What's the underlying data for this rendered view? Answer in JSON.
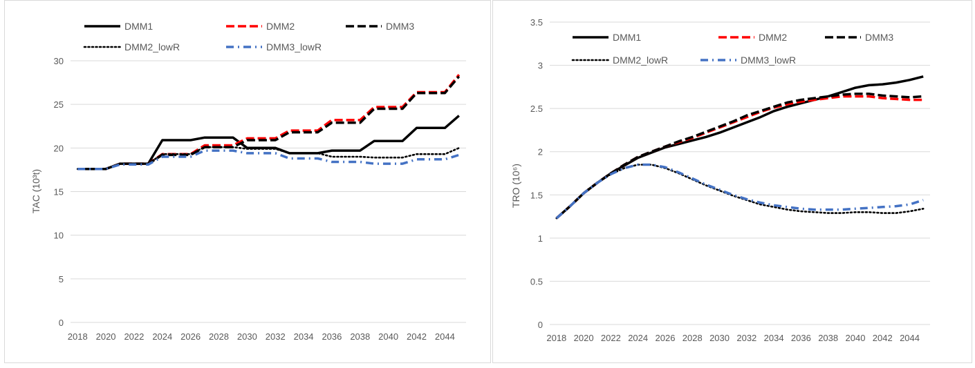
{
  "chart_data": [
    {
      "type": "line",
      "xlabel": "",
      "ylabel": "TAC (10³t)",
      "ylim": [
        0,
        30
      ],
      "y_ticks": [
        "0",
        "5",
        "10",
        "15",
        "20",
        "25",
        "30"
      ],
      "x_ticks": [
        "2018",
        "2020",
        "2022",
        "2024",
        "2026",
        "2028",
        "2030",
        "2032",
        "2034",
        "2036",
        "2038",
        "2040",
        "2042",
        "2044"
      ],
      "legend_placement": "top",
      "x": [
        2018,
        2019,
        2020,
        2021,
        2022,
        2023,
        2024,
        2025,
        2026,
        2027,
        2028,
        2029,
        2030,
        2031,
        2032,
        2033,
        2034,
        2035,
        2036,
        2037,
        2038,
        2039,
        2040,
        2041,
        2042,
        2043,
        2044,
        2045
      ],
      "series": [
        {
          "name": "DMM1",
          "style": "solid",
          "color": "#000000",
          "values": [
            17.6,
            17.6,
            17.6,
            18.2,
            18.2,
            18.2,
            20.9,
            20.9,
            20.9,
            21.2,
            21.2,
            21.2,
            20.0,
            20.0,
            20.0,
            19.4,
            19.4,
            19.4,
            19.7,
            19.7,
            19.7,
            20.8,
            20.8,
            20.8,
            22.3,
            22.3,
            22.3,
            23.7
          ]
        },
        {
          "name": "DMM2",
          "style": "dash",
          "color": "#ff0000",
          "values": [
            17.6,
            17.6,
            17.6,
            18.2,
            18.2,
            18.2,
            19.3,
            19.3,
            19.3,
            20.3,
            20.3,
            20.3,
            21.1,
            21.1,
            21.1,
            22.0,
            22.0,
            22.0,
            23.2,
            23.2,
            23.2,
            24.7,
            24.7,
            24.7,
            26.4,
            26.4,
            26.4,
            28.4
          ]
        },
        {
          "name": "DMM3",
          "style": "dash",
          "color": "#000000",
          "values": [
            17.6,
            17.6,
            17.6,
            18.2,
            18.2,
            18.2,
            19.2,
            19.2,
            19.2,
            20.1,
            20.1,
            20.1,
            20.9,
            20.9,
            20.9,
            21.8,
            21.8,
            21.8,
            22.9,
            22.9,
            22.9,
            24.5,
            24.5,
            24.5,
            26.3,
            26.3,
            26.3,
            28.2
          ]
        },
        {
          "name": "DMM2_lowR",
          "style": "dot",
          "color": "#000000",
          "values": [
            17.6,
            17.6,
            17.6,
            18.2,
            18.2,
            18.2,
            19.3,
            19.3,
            19.3,
            20.1,
            20.1,
            20.1,
            19.9,
            19.9,
            19.9,
            19.4,
            19.4,
            19.4,
            19.0,
            19.0,
            19.0,
            18.9,
            18.9,
            18.9,
            19.3,
            19.3,
            19.3,
            20.0
          ]
        },
        {
          "name": "DMM3_lowR",
          "style": "dashdot",
          "color": "#4472c4",
          "values": [
            17.6,
            17.6,
            17.6,
            18.1,
            18.1,
            18.1,
            19.0,
            19.0,
            19.0,
            19.7,
            19.7,
            19.7,
            19.4,
            19.4,
            19.4,
            18.8,
            18.8,
            18.8,
            18.4,
            18.4,
            18.4,
            18.2,
            18.2,
            18.2,
            18.7,
            18.7,
            18.7,
            19.2
          ]
        }
      ]
    },
    {
      "type": "line",
      "xlabel": "",
      "ylabel": "TRO (10⁶)",
      "ylim": [
        0,
        3.5
      ],
      "y_ticks": [
        "0",
        "0.5",
        "1",
        "1.5",
        "2",
        "2.5",
        "3",
        "3.5"
      ],
      "x_ticks": [
        "2018",
        "2020",
        "2022",
        "2024",
        "2026",
        "2028",
        "2030",
        "2032",
        "2034",
        "2036",
        "2038",
        "2040",
        "2042",
        "2044"
      ],
      "legend_placement": "top",
      "x": [
        2018,
        2019,
        2020,
        2021,
        2022,
        2023,
        2024,
        2025,
        2026,
        2027,
        2028,
        2029,
        2030,
        2031,
        2032,
        2033,
        2034,
        2035,
        2036,
        2037,
        2038,
        2039,
        2040,
        2041,
        2042,
        2043,
        2044,
        2045
      ],
      "series": [
        {
          "name": "DMM1",
          "style": "solid",
          "color": "#000000",
          "values": [
            1.23,
            1.37,
            1.52,
            1.64,
            1.75,
            1.84,
            1.93,
            1.99,
            2.05,
            2.09,
            2.13,
            2.17,
            2.22,
            2.28,
            2.34,
            2.4,
            2.47,
            2.52,
            2.56,
            2.6,
            2.64,
            2.69,
            2.74,
            2.77,
            2.78,
            2.8,
            2.83,
            2.87
          ]
        },
        {
          "name": "DMM2",
          "style": "dash",
          "color": "#ff0000",
          "values": [
            1.23,
            1.37,
            1.52,
            1.64,
            1.75,
            1.85,
            1.94,
            2.0,
            2.06,
            2.11,
            2.16,
            2.22,
            2.28,
            2.34,
            2.4,
            2.46,
            2.51,
            2.55,
            2.58,
            2.6,
            2.62,
            2.64,
            2.64,
            2.64,
            2.62,
            2.61,
            2.6,
            2.6
          ]
        },
        {
          "name": "DMM3",
          "style": "dash",
          "color": "#000000",
          "values": [
            1.23,
            1.37,
            1.52,
            1.64,
            1.75,
            1.85,
            1.94,
            2.0,
            2.06,
            2.12,
            2.17,
            2.23,
            2.29,
            2.35,
            2.42,
            2.47,
            2.52,
            2.57,
            2.6,
            2.62,
            2.64,
            2.66,
            2.67,
            2.67,
            2.65,
            2.64,
            2.63,
            2.64
          ]
        },
        {
          "name": "DMM2_lowR",
          "style": "dot",
          "color": "#000000",
          "values": [
            1.23,
            1.37,
            1.52,
            1.64,
            1.74,
            1.81,
            1.85,
            1.85,
            1.81,
            1.75,
            1.68,
            1.61,
            1.55,
            1.49,
            1.44,
            1.39,
            1.36,
            1.33,
            1.31,
            1.3,
            1.29,
            1.29,
            1.3,
            1.3,
            1.29,
            1.29,
            1.31,
            1.34
          ]
        },
        {
          "name": "DMM3_lowR",
          "style": "dashdot",
          "color": "#4472c4",
          "values": [
            1.23,
            1.37,
            1.52,
            1.64,
            1.74,
            1.81,
            1.85,
            1.85,
            1.82,
            1.76,
            1.69,
            1.62,
            1.56,
            1.5,
            1.45,
            1.41,
            1.38,
            1.36,
            1.34,
            1.33,
            1.33,
            1.33,
            1.34,
            1.35,
            1.36,
            1.37,
            1.39,
            1.44
          ]
        }
      ]
    }
  ]
}
